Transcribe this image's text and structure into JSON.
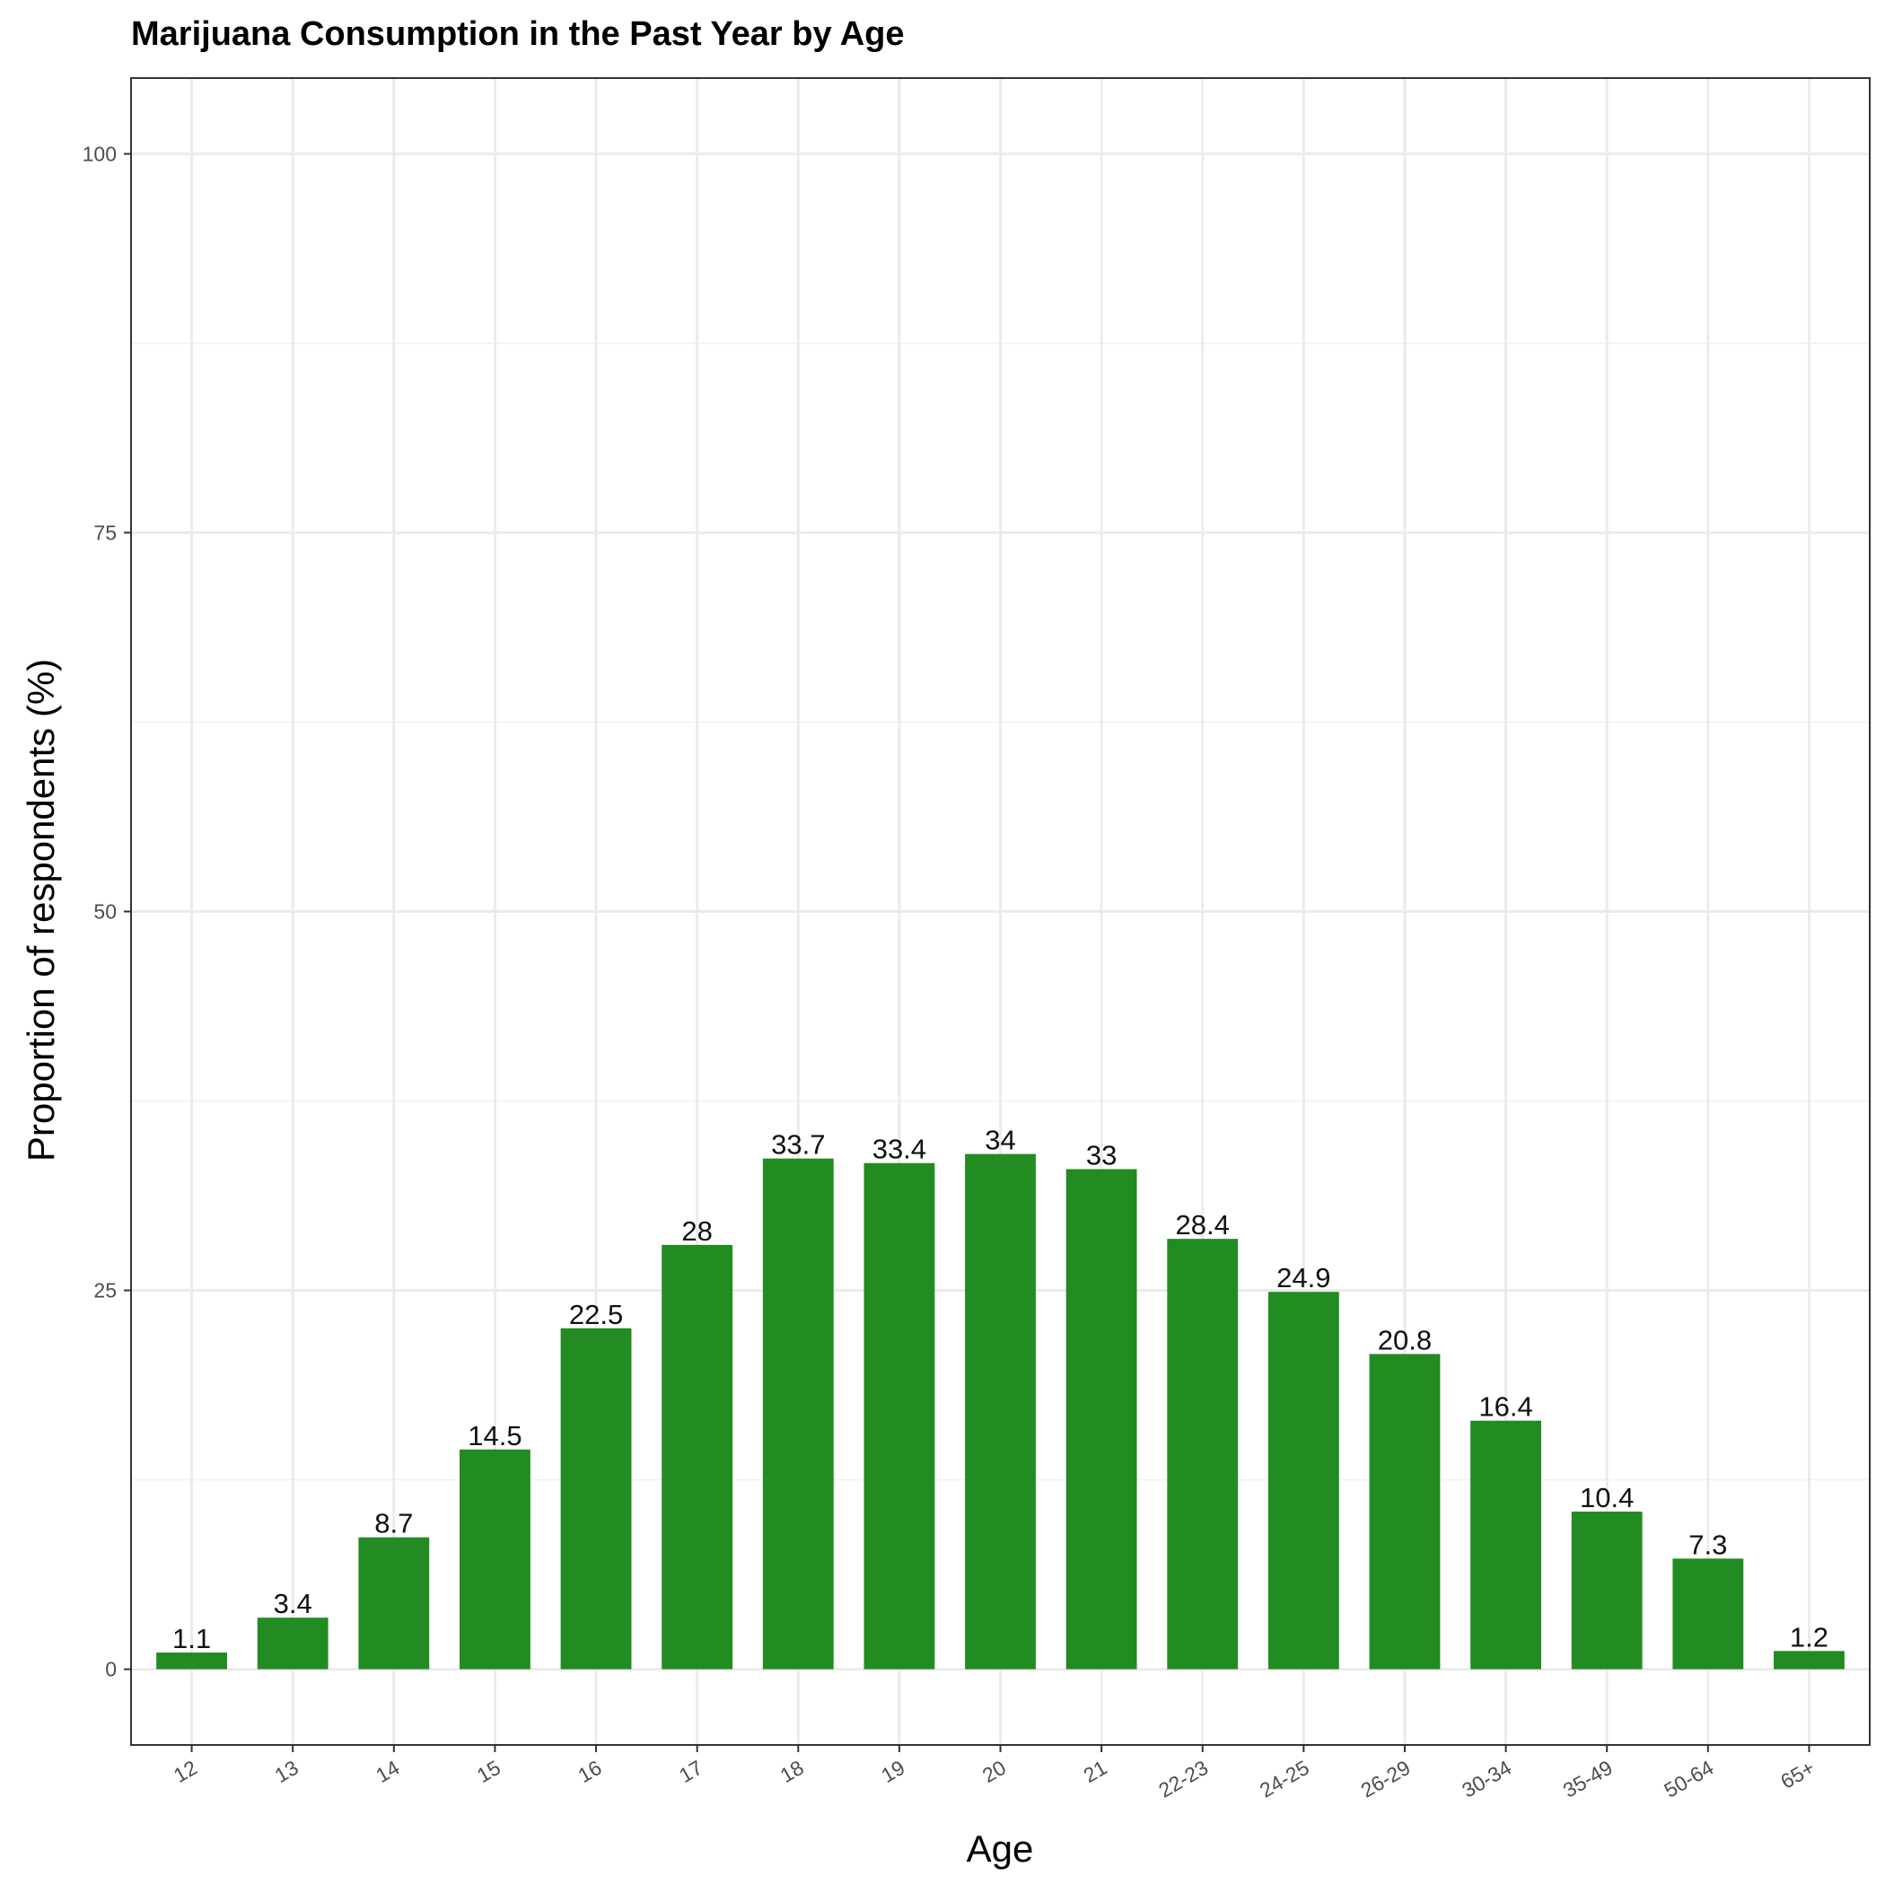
{
  "chart_data": {
    "type": "bar",
    "title": "Marijuana Consumption in the Past Year by Age",
    "xlabel": "Age",
    "ylabel": "Proportion of respondents (%)",
    "categories": [
      "12",
      "13",
      "14",
      "15",
      "16",
      "17",
      "18",
      "19",
      "20",
      "21",
      "22-23",
      "24-25",
      "26-29",
      "30-34",
      "35-49",
      "50-64",
      "65+"
    ],
    "values": [
      1.1,
      3.4,
      8.7,
      14.5,
      22.5,
      28,
      33.7,
      33.4,
      34,
      33,
      28.4,
      24.9,
      20.8,
      16.4,
      10.4,
      7.3,
      1.2
    ],
    "data_labels": [
      "1.1",
      "3.4",
      "8.7",
      "14.5",
      "22.5",
      "28",
      "33.7",
      "33.4",
      "34",
      "33",
      "28.4",
      "24.9",
      "20.8",
      "16.4",
      "10.4",
      "7.3",
      "1.2"
    ],
    "ylim": [
      -5,
      105
    ],
    "yticks": [
      0,
      25,
      50,
      75,
      100
    ],
    "ytick_labels": [
      "0",
      "25",
      "50",
      "75",
      "100"
    ],
    "y_minor_ticks": [
      12.5,
      37.5,
      62.5,
      87.5
    ],
    "grid": true,
    "legend": "none",
    "colors": {
      "bar": "#228B22",
      "grid_major": "#ebebeb",
      "grid_minor": "#f2f2f2",
      "panel_border": "#333333",
      "tick": "#333333"
    }
  }
}
